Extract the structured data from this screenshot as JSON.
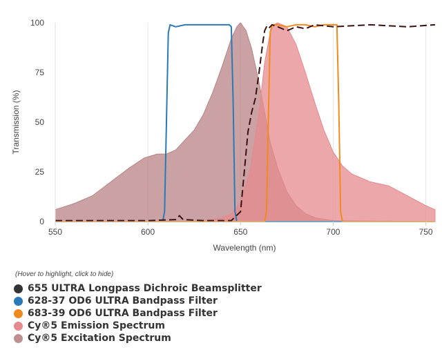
{
  "chart_data": {
    "type": "area",
    "xlabel": "Wavelength (nm)",
    "ylabel": "Transmission (%)",
    "xlim": [
      550,
      755
    ],
    "ylim": [
      0,
      100
    ],
    "xticks": [
      550,
      600,
      650,
      700,
      750
    ],
    "yticks": [
      0,
      25,
      50,
      75,
      100
    ],
    "grid": "vertical",
    "legend_hint": "(Hover to highlight, click to hide)",
    "legend_position": "bottom-left",
    "series": [
      {
        "name": "Cy®5 Excitation Spectrum",
        "color": "#b98384",
        "style": "area",
        "x": [
          550,
          560,
          570,
          580,
          590,
          598,
          605,
          610,
          615,
          620,
          625,
          630,
          635,
          640,
          645,
          648,
          650,
          653,
          656,
          660,
          663,
          666,
          670,
          675,
          680,
          685,
          690,
          700,
          755
        ],
        "y": [
          6,
          9,
          13,
          20,
          27,
          32,
          34,
          34,
          36,
          41,
          46,
          54,
          65,
          78,
          92,
          98,
          100,
          96,
          87,
          70,
          55,
          40,
          27,
          15,
          8,
          4,
          2,
          0.5,
          0
        ]
      },
      {
        "name": "Cy®5 Emission Spectrum",
        "color": "#e58a8e",
        "style": "area",
        "x": [
          550,
          600,
          620,
          630,
          635,
          640,
          645,
          650,
          655,
          660,
          663,
          666,
          668,
          670,
          675,
          680,
          685,
          690,
          695,
          700,
          705,
          710,
          720,
          730,
          740,
          750,
          755
        ],
        "y": [
          0,
          0,
          0,
          0.5,
          1,
          2,
          4,
          10,
          25,
          55,
          80,
          95,
          99,
          100,
          98,
          89,
          75,
          60,
          46,
          35,
          28,
          24,
          20,
          18,
          13,
          8,
          6
        ]
      },
      {
        "name": "628-37 OD6 ULTRA Bandpass Filter",
        "color": "#2879b6",
        "style": "line",
        "x": [
          550,
          608,
          609,
          610,
          611,
          612,
          615,
          620,
          625,
          630,
          635,
          640,
          644,
          645,
          646,
          647,
          648,
          755
        ],
        "y": [
          0,
          0,
          5,
          50,
          95,
          99,
          98,
          99,
          99,
          99,
          99,
          99,
          99,
          98,
          60,
          5,
          0,
          0
        ]
      },
      {
        "name": "683-39 OD6 ULTRA Bandpass Filter",
        "color": "#f08a1e",
        "style": "line",
        "x": [
          550,
          663,
          664,
          665,
          666,
          667,
          670,
          675,
          680,
          685,
          690,
          695,
          700,
          702,
          703,
          704,
          705,
          755
        ],
        "y": [
          0,
          0,
          5,
          50,
          95,
          99,
          99,
          98,
          99,
          99,
          98,
          99,
          99,
          99,
          60,
          5,
          0,
          0
        ]
      },
      {
        "name": "655 ULTRA Longpass Dichroic Beamsplitter",
        "color": "#3a1010",
        "style": "dashed",
        "x": [
          550,
          560,
          580,
          600,
          615,
          617,
          619,
          630,
          645,
          650,
          652,
          654,
          656,
          658,
          660,
          662,
          663,
          664,
          665,
          667,
          670,
          675,
          680,
          685,
          690,
          700,
          720,
          740,
          755
        ],
        "y": [
          0.5,
          0.5,
          0.5,
          0.5,
          1,
          3,
          1,
          0.5,
          0.5,
          5,
          25,
          45,
          55,
          62,
          75,
          90,
          96,
          98,
          97,
          99,
          98,
          96,
          98,
          97,
          99,
          98,
          99,
          98,
          99
        ]
      }
    ]
  },
  "legend_items": [
    {
      "label": "655 ULTRA Longpass Dichroic Beamsplitter",
      "color": "#333333"
    },
    {
      "label": "628-37 OD6 ULTRA Bandpass Filter",
      "color": "#2879b6"
    },
    {
      "label": "683-39 OD6 ULTRA Bandpass Filter",
      "color": "#f08a1e"
    },
    {
      "label": "Cy®5 Emission Spectrum",
      "color": "#e58a8e"
    },
    {
      "label": "Cy®5 Excitation Spectrum",
      "color": "#c09090"
    }
  ]
}
